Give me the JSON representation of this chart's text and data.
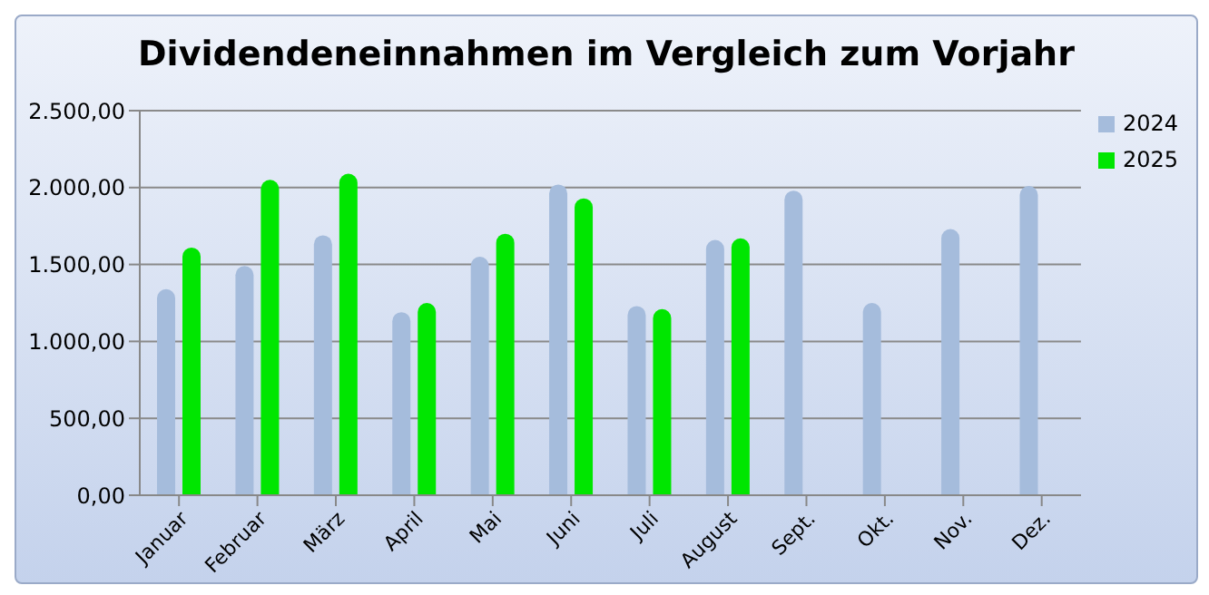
{
  "chart_data": {
    "type": "bar",
    "title": "Dividendeneinnahmen im Vergleich zum Vorjahr",
    "categories": [
      "Januar",
      "Februar",
      "März",
      "April",
      "Mai",
      "Juni",
      "Juli",
      "August",
      "Sept.",
      "Okt.",
      "Nov.",
      "Dez."
    ],
    "series": [
      {
        "name": "2024",
        "color": "#a5bcdc",
        "values": [
          1340,
          1490,
          1690,
          1190,
          1550,
          2020,
          1230,
          1660,
          1980,
          1250,
          1730,
          2010
        ]
      },
      {
        "name": "2025",
        "color": "#00e600",
        "values": [
          1610,
          2050,
          2090,
          1250,
          1700,
          1930,
          1210,
          1670,
          null,
          null,
          null,
          null
        ]
      }
    ],
    "ylim": [
      0,
      2500
    ],
    "yticks": [
      {
        "value": 0,
        "label": "0,00"
      },
      {
        "value": 500,
        "label": "500,00"
      },
      {
        "value": 1000,
        "label": "1.000,00"
      },
      {
        "value": 1500,
        "label": "1.500,00"
      },
      {
        "value": 2000,
        "label": "2.000,00"
      },
      {
        "value": 2500,
        "label": "2.500,00"
      }
    ],
    "grid": "y",
    "legend": "top right"
  }
}
